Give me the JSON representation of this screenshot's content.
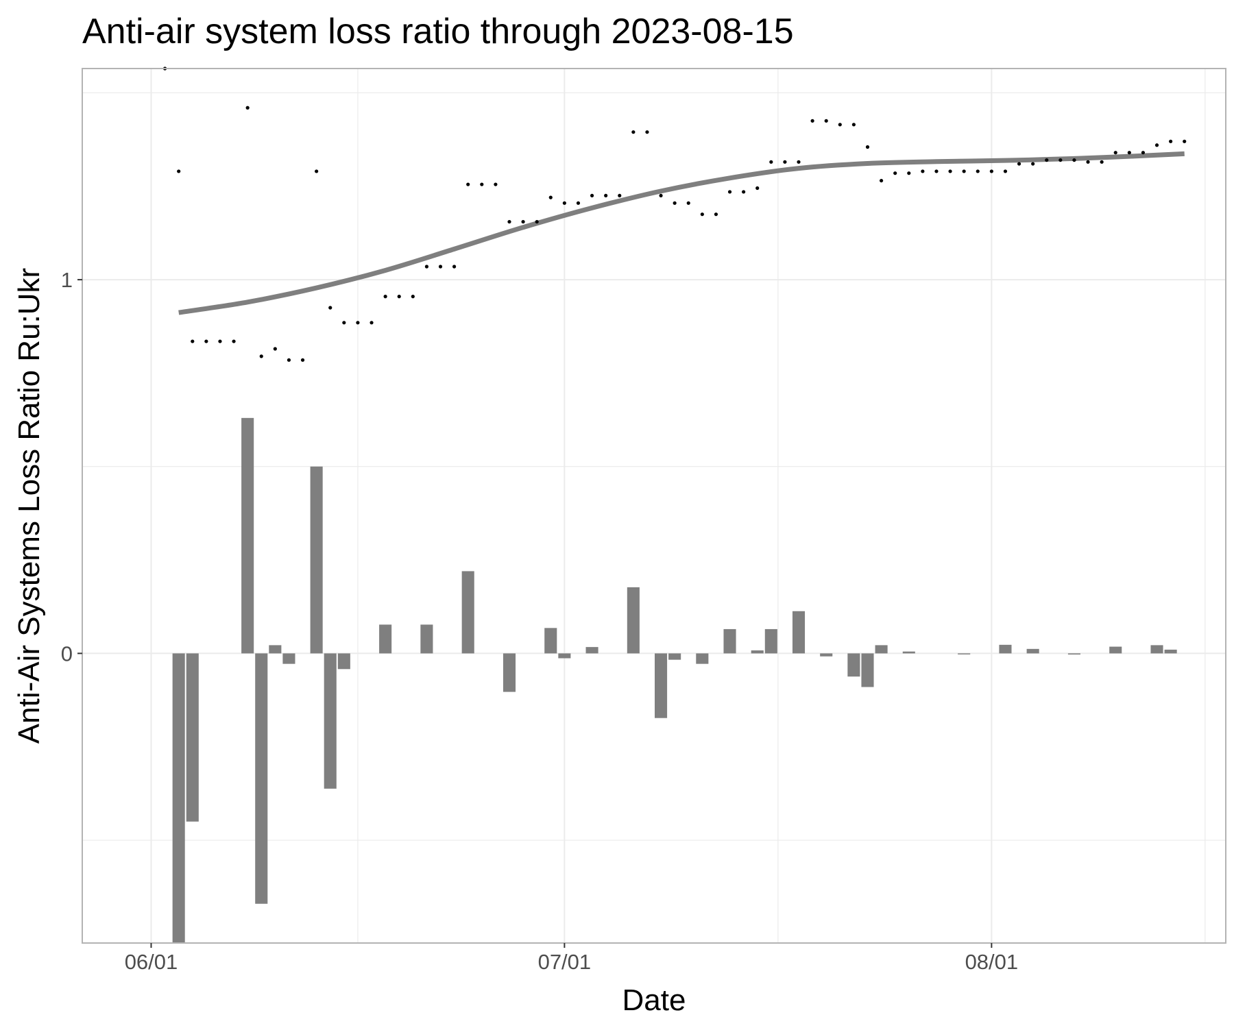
{
  "chart_data": {
    "type": "bar",
    "title": "Anti-air system loss ratio through 2023-08-15",
    "xlabel": "Date",
    "ylabel": "Anti-Air Systems Loss Ratio Ru:Ukr",
    "x_tick_labels": [
      {
        "date": "2023-06-01",
        "label": "06/01"
      },
      {
        "date": "2023-07-01",
        "label": "07/01"
      },
      {
        "date": "2023-08-01",
        "label": "08/01"
      }
    ],
    "y_tick_labels": [
      {
        "value": 0,
        "label": "0"
      },
      {
        "value": 1,
        "label": "1"
      }
    ],
    "xlim": [
      "2023-05-27",
      "2023-08-18"
    ],
    "ylim": [
      -0.775,
      1.565
    ],
    "grid": true,
    "colors": {
      "bars": "#7f7f7f",
      "smooth_line": "#7f7f7f",
      "points": "#000000",
      "grid": "#ebebeb",
      "panel_border": "#b3b3b3"
    },
    "series": [
      {
        "kind": "points",
        "dates": [
          "2023-06-02",
          "2023-06-03",
          "2023-06-04",
          "2023-06-05",
          "2023-06-06",
          "2023-06-07",
          "2023-06-08",
          "2023-06-09",
          "2023-06-10",
          "2023-06-11",
          "2023-06-12",
          "2023-06-13",
          "2023-06-14",
          "2023-06-15",
          "2023-06-16",
          "2023-06-17",
          "2023-06-18",
          "2023-06-19",
          "2023-06-20",
          "2023-06-21",
          "2023-06-22",
          "2023-06-23",
          "2023-06-24",
          "2023-06-25",
          "2023-06-26",
          "2023-06-27",
          "2023-06-28",
          "2023-06-29",
          "2023-06-30",
          "2023-07-01",
          "2023-07-02",
          "2023-07-03",
          "2023-07-04",
          "2023-07-05",
          "2023-07-06",
          "2023-07-07",
          "2023-07-08",
          "2023-07-09",
          "2023-07-10",
          "2023-07-11",
          "2023-07-12",
          "2023-07-13",
          "2023-07-14",
          "2023-07-15",
          "2023-07-16",
          "2023-07-17",
          "2023-07-18",
          "2023-07-19",
          "2023-07-20",
          "2023-07-21",
          "2023-07-22",
          "2023-07-23",
          "2023-07-24",
          "2023-07-25",
          "2023-07-26",
          "2023-07-27",
          "2023-07-28",
          "2023-07-29",
          "2023-07-30",
          "2023-07-31",
          "2023-08-01",
          "2023-08-02",
          "2023-08-03",
          "2023-08-04",
          "2023-08-05",
          "2023-08-06",
          "2023-08-07",
          "2023-08-08",
          "2023-08-09",
          "2023-08-10",
          "2023-08-11",
          "2023-08-12",
          "2023-08-13",
          "2023-08-14",
          "2023-08-15"
        ],
        "values": [
          1.565,
          1.29,
          0.835,
          0.835,
          0.835,
          0.835,
          1.46,
          0.795,
          0.815,
          0.785,
          0.785,
          1.29,
          0.925,
          0.885,
          0.885,
          0.885,
          0.955,
          0.955,
          0.955,
          1.035,
          1.035,
          1.035,
          1.255,
          1.255,
          1.255,
          1.155,
          1.155,
          1.155,
          1.22,
          1.205,
          1.205,
          1.225,
          1.225,
          1.225,
          1.395,
          1.395,
          1.225,
          1.205,
          1.205,
          1.175,
          1.175,
          1.235,
          1.235,
          1.245,
          1.315,
          1.315,
          1.315,
          1.425,
          1.425,
          1.415,
          1.415,
          1.355,
          1.265,
          1.285,
          1.285,
          1.29,
          1.29,
          1.29,
          1.29,
          1.29,
          1.29,
          1.29,
          1.31,
          1.31,
          1.32,
          1.32,
          1.32,
          1.315,
          1.315,
          1.34,
          1.34,
          1.34,
          1.36,
          1.37,
          1.37
        ]
      },
      {
        "kind": "bars",
        "dates": [
          "2023-06-03",
          "2023-06-04",
          "2023-06-08",
          "2023-06-09",
          "2023-06-10",
          "2023-06-11",
          "2023-06-13",
          "2023-06-14",
          "2023-06-15",
          "2023-06-18",
          "2023-06-21",
          "2023-06-24",
          "2023-06-27",
          "2023-06-30",
          "2023-07-01",
          "2023-07-03",
          "2023-07-06",
          "2023-07-08",
          "2023-07-09",
          "2023-07-11",
          "2023-07-13",
          "2023-07-15",
          "2023-07-16",
          "2023-07-18",
          "2023-07-20",
          "2023-07-22",
          "2023-07-23",
          "2023-07-24",
          "2023-07-26",
          "2023-07-30",
          "2023-08-02",
          "2023-08-04",
          "2023-08-07",
          "2023-08-10",
          "2023-08-13",
          "2023-08-14"
        ],
        "values": [
          -0.775,
          -0.45,
          0.63,
          -0.67,
          0.022,
          -0.028,
          0.5,
          -0.362,
          -0.042,
          0.077,
          0.077,
          0.22,
          -0.103,
          0.068,
          -0.013,
          0.017,
          0.177,
          -0.173,
          -0.017,
          -0.028,
          0.065,
          0.008,
          0.065,
          0.113,
          -0.008,
          -0.062,
          -0.09,
          0.022,
          0.005,
          -0.002,
          0.023,
          0.012,
          -0.003,
          0.018,
          0.022,
          0.01
        ]
      },
      {
        "kind": "smooth",
        "dates": [
          "2023-06-03",
          "2023-06-08",
          "2023-06-13",
          "2023-06-18",
          "2023-06-23",
          "2023-06-28",
          "2023-07-03",
          "2023-07-08",
          "2023-07-13",
          "2023-07-18",
          "2023-07-23",
          "2023-07-28",
          "2023-08-02",
          "2023-08-07",
          "2023-08-11",
          "2023-08-15"
        ],
        "values": [
          0.912,
          0.94,
          0.978,
          1.025,
          1.082,
          1.14,
          1.192,
          1.237,
          1.272,
          1.298,
          1.311,
          1.316,
          1.319,
          1.324,
          1.33,
          1.337
        ]
      }
    ]
  }
}
